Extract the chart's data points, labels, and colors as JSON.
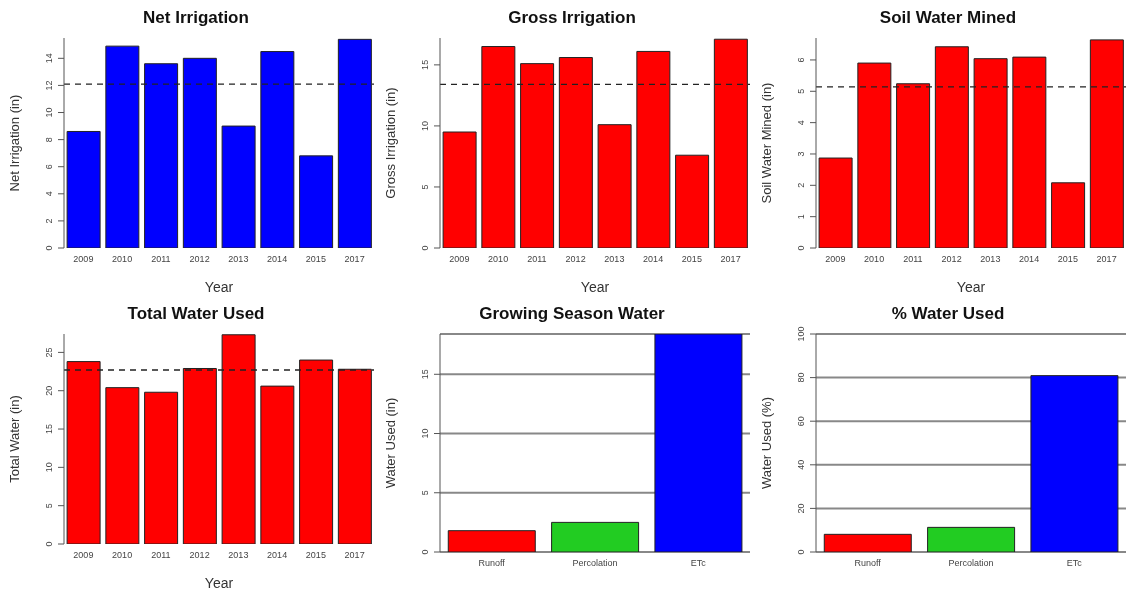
{
  "chart_data": [
    {
      "type": "bar",
      "title": "Net Irrigation",
      "xlabel": "Year",
      "ylabel": "Net Irrigation (in)",
      "categories": [
        "2009",
        "2010",
        "2011",
        "2012",
        "2013",
        "2014",
        "2015",
        "2017"
      ],
      "values": [
        8.6,
        14.9,
        13.6,
        14.0,
        9.0,
        14.5,
        6.8,
        15.4
      ],
      "color": "#0000ff",
      "ylim": [
        0,
        15.5
      ],
      "yticks": [
        0,
        2,
        4,
        6,
        8,
        10,
        12,
        14
      ],
      "grid": false,
      "ref_lines": [
        {
          "axis": "y",
          "value": 12.1,
          "line_style": "dashed"
        }
      ]
    },
    {
      "type": "bar",
      "title": "Gross Irrigation",
      "xlabel": "Year",
      "ylabel": "Gross Irrigation (in)",
      "categories": [
        "2009",
        "2010",
        "2011",
        "2012",
        "2013",
        "2014",
        "2015",
        "2017"
      ],
      "values": [
        9.5,
        16.5,
        15.1,
        15.6,
        10.1,
        16.1,
        7.6,
        17.1
      ],
      "color": "#ff0000",
      "ylim": [
        0,
        17.2
      ],
      "yticks": [
        0,
        5,
        10,
        15
      ],
      "grid": false,
      "ref_lines": [
        {
          "axis": "y",
          "value": 13.4,
          "line_style": "dashed"
        }
      ]
    },
    {
      "type": "bar",
      "title": "Soil Water Mined",
      "xlabel": "Year",
      "ylabel": "Soil Water Mined (in)",
      "categories": [
        "2009",
        "2010",
        "2011",
        "2012",
        "2013",
        "2014",
        "2015",
        "2017"
      ],
      "values": [
        2.87,
        5.9,
        5.24,
        6.42,
        6.04,
        6.09,
        2.08,
        6.64
      ],
      "color": "#ff0000",
      "ylim": [
        0,
        6.7
      ],
      "yticks": [
        0,
        1,
        2,
        3,
        4,
        5,
        6
      ],
      "grid": false,
      "ref_lines": [
        {
          "axis": "y",
          "value": 5.14,
          "line_style": "dashed"
        }
      ]
    },
    {
      "type": "bar",
      "title": "Total Water Used",
      "xlabel": "Year",
      "ylabel": "Total Water (in)",
      "categories": [
        "2009",
        "2010",
        "2011",
        "2012",
        "2013",
        "2014",
        "2015",
        "2017"
      ],
      "values": [
        23.8,
        20.4,
        19.8,
        22.9,
        27.3,
        20.6,
        24.0,
        22.8
      ],
      "color": "#ff0000",
      "ylim": [
        0,
        27.4
      ],
      "yticks": [
        0,
        5,
        10,
        15,
        20,
        25
      ],
      "grid": false,
      "ref_lines": [
        {
          "axis": "y",
          "value": 22.7,
          "line_style": "dashed"
        }
      ]
    },
    {
      "type": "bar",
      "title": "Growing Season Water",
      "ylabel": "Water Used (in)",
      "categories": [
        "Runoff",
        "Percolation",
        "ETc"
      ],
      "values": [
        1.8,
        2.5,
        18.4
      ],
      "colors": [
        "#ff0000",
        "#22cc22",
        "#0000ff"
      ],
      "ylim": [
        0,
        18.4
      ],
      "yticks": [
        0,
        5,
        10,
        15
      ],
      "grid": "y"
    },
    {
      "type": "bar",
      "title": "% Water Used",
      "ylabel": "Water Used (%)",
      "categories": [
        "Runoff",
        "Percolation",
        "ETc"
      ],
      "values": [
        8.1,
        11.3,
        80.9
      ],
      "colors": [
        "#ff0000",
        "#22cc22",
        "#0000ff"
      ],
      "ylim": [
        0,
        100
      ],
      "yticks": [
        0,
        20,
        40,
        60,
        80,
        100
      ],
      "grid": "y"
    }
  ]
}
